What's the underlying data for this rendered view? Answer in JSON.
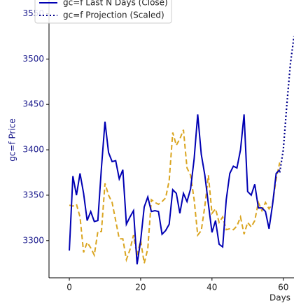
{
  "chart_data": {
    "type": "line",
    "xlabel": "Days",
    "ylabel": "gc=f Price",
    "xlim": [
      -5.7,
      63
    ],
    "ylim": [
      3259,
      3565
    ],
    "xticks": [
      0,
      20,
      40,
      60
    ],
    "yticks": [
      3300,
      3350,
      3400,
      3450,
      3500,
      3550
    ],
    "series": [
      {
        "color": "#daa520",
        "style": "dashed",
        "x": [
          0,
          1,
          2,
          3,
          4,
          5,
          6,
          7,
          8,
          9,
          10,
          11,
          12,
          13,
          14,
          15,
          16,
          17,
          18,
          19,
          20,
          21,
          22,
          23,
          24,
          25,
          26,
          27,
          28,
          29,
          30,
          31,
          32,
          33,
          34,
          35,
          36,
          37,
          38,
          39,
          40,
          41,
          42,
          43,
          44,
          45,
          46,
          47,
          48,
          49,
          50,
          51,
          52,
          53,
          54,
          55,
          56,
          57,
          58,
          59
        ],
        "values": [
          3339,
          3338,
          3340,
          3326,
          3287,
          3298,
          3292,
          3284,
          3310,
          3310,
          3363,
          3350,
          3342,
          3322,
          3302,
          3302,
          3279,
          3290,
          3306,
          3284,
          3300,
          3275,
          3291,
          3345,
          3342,
          3340,
          3343,
          3347,
          3366,
          3419,
          3405,
          3412,
          3422,
          3380,
          3372,
          3345,
          3306,
          3311,
          3338,
          3372,
          3330,
          3335,
          3320,
          3326,
          3312,
          3313,
          3312,
          3316,
          3326,
          3307,
          3320,
          3315,
          3322,
          3342,
          3333,
          3342,
          3335,
          3341,
          3368,
          3386
        ]
      },
      {
        "name": "gc=f Last N Days (Close)",
        "color": "#0000b3",
        "style": "solid",
        "x": [
          0,
          1,
          2,
          3,
          4,
          5,
          6,
          7,
          8,
          9,
          10,
          11,
          12,
          13,
          14,
          15,
          16,
          17,
          18,
          19,
          20,
          21,
          22,
          23,
          24,
          25,
          26,
          27,
          28,
          29,
          30,
          31,
          32,
          33,
          34,
          35,
          36,
          37,
          38,
          39,
          40,
          41,
          42,
          43,
          44,
          45,
          46,
          47,
          48,
          49,
          50,
          51,
          52,
          53,
          54,
          55,
          56,
          57,
          58,
          59
        ],
        "values": [
          3289,
          3371,
          3350,
          3374,
          3352,
          3322,
          3332,
          3321,
          3322,
          3380,
          3431,
          3397,
          3387,
          3388,
          3368,
          3378,
          3318,
          3326,
          3333,
          3274,
          3300,
          3337,
          3348,
          3332,
          3333,
          3332,
          3307,
          3311,
          3318,
          3356,
          3352,
          3330,
          3352,
          3343,
          3357,
          3390,
          3439,
          3395,
          3372,
          3340,
          3309,
          3322,
          3296,
          3293,
          3345,
          3374,
          3382,
          3380,
          3400,
          3439,
          3354,
          3350,
          3362,
          3336,
          3336,
          3332,
          3313,
          3340,
          3374,
          3378
        ]
      },
      {
        "name": "gc=f Projection (Scaled)",
        "color": "#00008b",
        "style": "dotted",
        "x": [
          59,
          60,
          61,
          62,
          63
        ],
        "values": [
          3375,
          3400,
          3450,
          3495,
          3525
        ]
      }
    ]
  }
}
